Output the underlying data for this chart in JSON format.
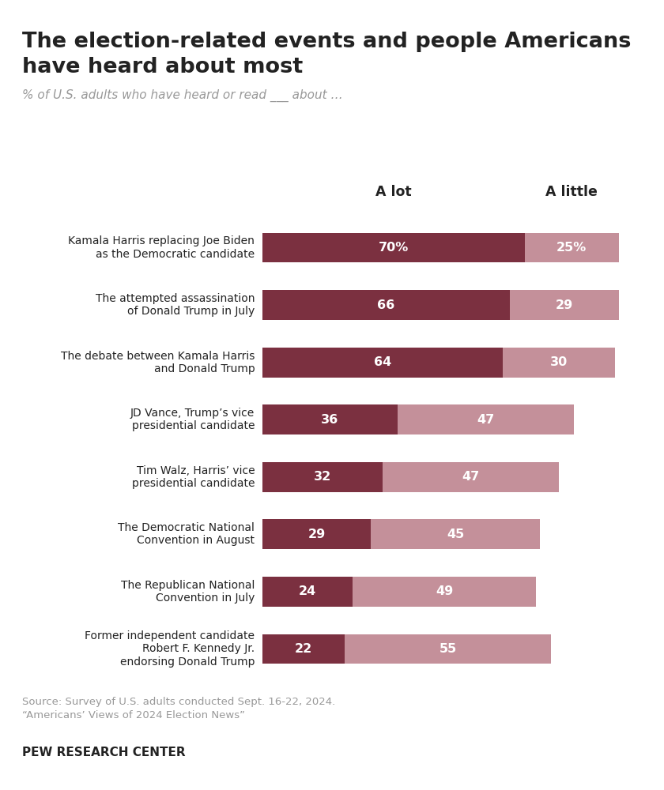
{
  "title_line1": "The election-related events and people Americans",
  "title_line2": "have heard about most",
  "subtitle": "% of U.S. adults who have heard or read ___ about …",
  "col_header_lot": "A lot",
  "col_header_little": "A little",
  "categories": [
    "Kamala Harris replacing Joe Biden\nas the Democratic candidate",
    "The attempted assassination\nof Donald Trump in July",
    "The debate between Kamala Harris\nand Donald Trump",
    "JD Vance, Trump’s vice\npresidential candidate",
    "Tim Walz, Harris’ vice\npresidential candidate",
    "The Democratic National\nConvention in August",
    "The Republican National\nConvention in July",
    "Former independent candidate\nRobert F. Kennedy Jr.\nendorsing Donald Trump"
  ],
  "a_lot": [
    70,
    66,
    64,
    36,
    32,
    29,
    24,
    22
  ],
  "a_little": [
    25,
    29,
    30,
    47,
    47,
    45,
    49,
    55
  ],
  "a_lot_labels": [
    "70%",
    "66",
    "64",
    "36",
    "32",
    "29",
    "24",
    "22"
  ],
  "a_little_labels": [
    "25%",
    "29",
    "30",
    "47",
    "47",
    "45",
    "49",
    "55"
  ],
  "color_lot": "#7B3040",
  "color_little": "#C4909A",
  "source_text_1": "Source: Survey of U.S. adults conducted Sept. 16-22, 2024.",
  "source_text_2": "“Americans’ Views of 2024 Election News”",
  "footer": "PEW RESEARCH CENTER",
  "bg_color": "#FFFFFF",
  "text_color_dark": "#222222",
  "text_color_gray": "#999999"
}
